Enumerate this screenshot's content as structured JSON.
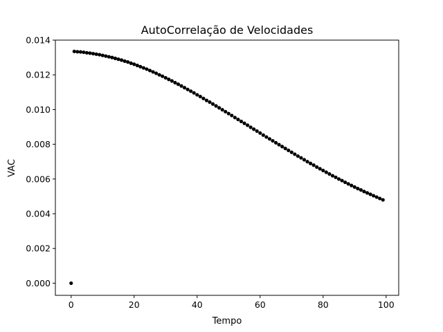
{
  "chart_data": {
    "type": "scatter",
    "title": "AutoCorrelação de Velocidades",
    "xlabel": "Tempo",
    "ylabel": "VAC",
    "xlim": [
      -5,
      104
    ],
    "ylim": [
      -0.0007,
      0.014
    ],
    "grid": false,
    "marker_color": "#000000",
    "x_ticks": [
      0,
      20,
      40,
      60,
      80,
      100
    ],
    "x_tick_labels": [
      "0",
      "20",
      "40",
      "60",
      "80",
      "100"
    ],
    "y_ticks": [
      0.0,
      0.002,
      0.004,
      0.006,
      0.008,
      0.01,
      0.012,
      0.014
    ],
    "y_tick_labels": [
      "0.000",
      "0.002",
      "0.004",
      "0.006",
      "0.008",
      "0.010",
      "0.012",
      "0.014"
    ],
    "series": [
      {
        "x": [
          0,
          1,
          2,
          3,
          4,
          5,
          6,
          7,
          8,
          9,
          10,
          11,
          12,
          13,
          14,
          15,
          16,
          17,
          18,
          19,
          20,
          21,
          22,
          23,
          24,
          25,
          26,
          27,
          28,
          29,
          30,
          31,
          32,
          33,
          34,
          35,
          36,
          37,
          38,
          39,
          40,
          41,
          42,
          43,
          44,
          45,
          46,
          47,
          48,
          49,
          50,
          51,
          52,
          53,
          54,
          55,
          56,
          57,
          58,
          59,
          60,
          61,
          62,
          63,
          64,
          65,
          66,
          67,
          68,
          69,
          70,
          71,
          72,
          73,
          74,
          75,
          76,
          77,
          78,
          79,
          80,
          81,
          82,
          83,
          84,
          85,
          86,
          87,
          88,
          89,
          90,
          91,
          92,
          93,
          94,
          95,
          96,
          97,
          98,
          99
        ],
        "y": [
          0.0,
          0.01335,
          0.01333,
          0.01332,
          0.0133,
          0.01327,
          0.01325,
          0.01322,
          0.01319,
          0.01316,
          0.01312,
          0.01308,
          0.01304,
          0.013,
          0.01295,
          0.0129,
          0.01285,
          0.01279,
          0.01274,
          0.01267,
          0.01261,
          0.01254,
          0.01247,
          0.0124,
          0.01233,
          0.01225,
          0.01217,
          0.01209,
          0.012,
          0.01192,
          0.01183,
          0.01174,
          0.01165,
          0.01155,
          0.01146,
          0.01136,
          0.01126,
          0.01116,
          0.01106,
          0.01096,
          0.01085,
          0.01075,
          0.01064,
          0.01053,
          0.01043,
          0.01032,
          0.01021,
          0.0101,
          0.00999,
          0.00988,
          0.00977,
          0.00966,
          0.00954,
          0.00943,
          0.00932,
          0.00921,
          0.0091,
          0.00898,
          0.00887,
          0.00876,
          0.00865,
          0.00853,
          0.00842,
          0.00831,
          0.0082,
          0.00809,
          0.00798,
          0.00787,
          0.00776,
          0.00765,
          0.00754,
          0.00743,
          0.00732,
          0.00722,
          0.00711,
          0.007,
          0.0069,
          0.0068,
          0.00669,
          0.00659,
          0.00649,
          0.00639,
          0.00629,
          0.00619,
          0.0061,
          0.006,
          0.00591,
          0.00581,
          0.00572,
          0.00563,
          0.00554,
          0.00545,
          0.00537,
          0.00528,
          0.0052,
          0.00512,
          0.00504,
          0.00496,
          0.00488,
          0.0048
        ]
      }
    ]
  }
}
